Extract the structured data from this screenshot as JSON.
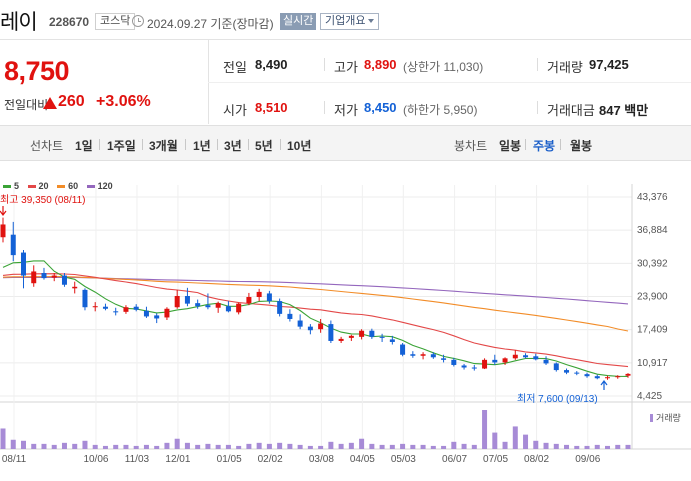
{
  "header": {
    "name": "레이",
    "code": "228670",
    "market": "코스닥",
    "date": "2024.09.27 기준(장마감)",
    "live_label": "실시간",
    "overview_label": "기업개요"
  },
  "quote": {
    "price": "8,750",
    "change_label": "전일대비",
    "change_value": "260",
    "change_pct": "+3.06%"
  },
  "stats": {
    "prev_label": "전일",
    "prev": "8,490",
    "high_label": "고가",
    "high": "8,890",
    "upper_limit": "(상한가 11,030)",
    "volume_label": "거래량",
    "volume": "97,425",
    "open_label": "시가",
    "open": "8,510",
    "low_label": "저가",
    "low": "8,450",
    "lower_limit": "(하한가 5,950)",
    "amount_label": "거래대금",
    "amount": "847 백만"
  },
  "toolbar": {
    "line_chart_label": "선차트",
    "line_periods": [
      "1일",
      "1주일",
      "3개월",
      "1년",
      "3년",
      "5년",
      "10년"
    ],
    "candle_chart_label": "봉차트",
    "candle_periods": [
      "일봉",
      "주봉",
      "월봉"
    ],
    "active_candle": "주봉"
  },
  "colors": {
    "up": "#e0120f",
    "down": "#1361d6",
    "ma5": "#3aa336",
    "ma20": "#e34848",
    "ma60": "#f28c28",
    "ma120": "#9467bd",
    "volume": "#a78bd6"
  },
  "chart_data": {
    "type": "candlestick",
    "legend": [
      "5",
      "20",
      "60",
      "120"
    ],
    "y_ticks": [
      "43,376",
      "36,884",
      "30,392",
      "23,900",
      "17,409",
      "10,917",
      "4,425"
    ],
    "ylim": [
      4425,
      43376
    ],
    "x_ticks": [
      "08/11",
      "10/06",
      "11/03",
      "12/01",
      "01/05",
      "02/02",
      "03/08",
      "04/05",
      "05/03",
      "06/07",
      "07/05",
      "08/02",
      "09/06"
    ],
    "high_annotation": "최고 39,350 (08/11)",
    "low_annotation": "최저 7,600 (09/13)",
    "volume_label": "거래량",
    "candles": [
      [
        35500,
        39350,
        34500,
        38000
      ],
      [
        36000,
        38500,
        30800,
        32000
      ],
      [
        32500,
        33000,
        25500,
        28000
      ],
      [
        26500,
        30000,
        25800,
        28800
      ],
      [
        28500,
        29500,
        27200,
        27500
      ],
      [
        27600,
        28500,
        26900,
        28000
      ],
      [
        28000,
        28500,
        25800,
        26200
      ],
      [
        25500,
        26800,
        24500,
        25800
      ],
      [
        25200,
        25500,
        21200,
        21800
      ],
      [
        21800,
        22800,
        21000,
        22000
      ],
      [
        21900,
        22500,
        21200,
        21500
      ],
      [
        21000,
        21700,
        20200,
        20800
      ],
      [
        20900,
        22200,
        20500,
        21800
      ],
      [
        21900,
        22400,
        21000,
        21300
      ],
      [
        21100,
        21900,
        19700,
        20000
      ],
      [
        20200,
        20600,
        18700,
        19600
      ],
      [
        19800,
        21800,
        19300,
        21500
      ],
      [
        21800,
        25200,
        21500,
        24000
      ],
      [
        24000,
        25600,
        22000,
        22500
      ],
      [
        22600,
        23300,
        21500,
        22000
      ],
      [
        22200,
        24500,
        21400,
        21800
      ],
      [
        21700,
        22900,
        20700,
        22600
      ],
      [
        22000,
        23000,
        20800,
        21000
      ],
      [
        20800,
        22700,
        20400,
        22500
      ],
      [
        22600,
        24600,
        22200,
        23800
      ],
      [
        23800,
        25400,
        23000,
        24800
      ],
      [
        24500,
        25000,
        22500,
        23000
      ],
      [
        23000,
        23500,
        20000,
        20500
      ],
      [
        20500,
        21400,
        19000,
        19500
      ],
      [
        19200,
        20400,
        17500,
        18000
      ],
      [
        18000,
        18500,
        16500,
        17300
      ],
      [
        17500,
        19500,
        16800,
        18600
      ],
      [
        18500,
        19200,
        14800,
        15200
      ],
      [
        15200,
        16000,
        14800,
        15600
      ],
      [
        15800,
        16400,
        15200,
        16200
      ],
      [
        16000,
        17500,
        15500,
        17200
      ],
      [
        17200,
        17600,
        15600,
        16000
      ],
      [
        16000,
        16600,
        15000,
        15800
      ],
      [
        15500,
        16200,
        14500,
        15000
      ],
      [
        14500,
        14800,
        12200,
        12500
      ],
      [
        12600,
        13200,
        11900,
        12300
      ],
      [
        12300,
        13000,
        11600,
        12600
      ],
      [
        12600,
        13000,
        11700,
        12000
      ],
      [
        11800,
        12500,
        11000,
        11500
      ],
      [
        11500,
        11900,
        10200,
        10500
      ],
      [
        10400,
        10700,
        9600,
        10000
      ],
      [
        10000,
        10500,
        9400,
        9800
      ],
      [
        9800,
        11800,
        9700,
        11500
      ],
      [
        11500,
        12500,
        10500,
        11000
      ],
      [
        11000,
        12000,
        10500,
        11800
      ],
      [
        11800,
        13400,
        11500,
        12500
      ],
      [
        12400,
        12800,
        11800,
        12000
      ],
      [
        12200,
        12700,
        11400,
        11600
      ],
      [
        11500,
        12200,
        10500,
        10800
      ],
      [
        10800,
        11000,
        9200,
        9500
      ],
      [
        9500,
        9800,
        8700,
        9000
      ],
      [
        9000,
        9300,
        8500,
        8800
      ],
      [
        8700,
        9000,
        8000,
        8300
      ],
      [
        8300,
        8600,
        7700,
        7900
      ],
      [
        7900,
        8400,
        7600,
        8100
      ],
      [
        8100,
        8500,
        7800,
        8300
      ],
      [
        8400,
        8900,
        8000,
        8750
      ]
    ],
    "volumes": [
      20,
      9,
      8,
      5,
      5,
      4,
      6,
      5,
      8,
      4,
      3,
      4,
      4,
      3,
      4,
      3,
      6,
      10,
      6,
      4,
      5,
      4,
      4,
      3,
      5,
      6,
      5,
      6,
      5,
      4,
      3,
      3,
      7,
      5,
      6,
      10,
      5,
      4,
      4,
      5,
      4,
      4,
      3,
      3,
      7,
      5,
      4,
      38,
      16,
      7,
      22,
      14,
      8,
      6,
      5,
      4,
      3,
      3,
      4,
      3,
      4,
      4
    ]
  }
}
